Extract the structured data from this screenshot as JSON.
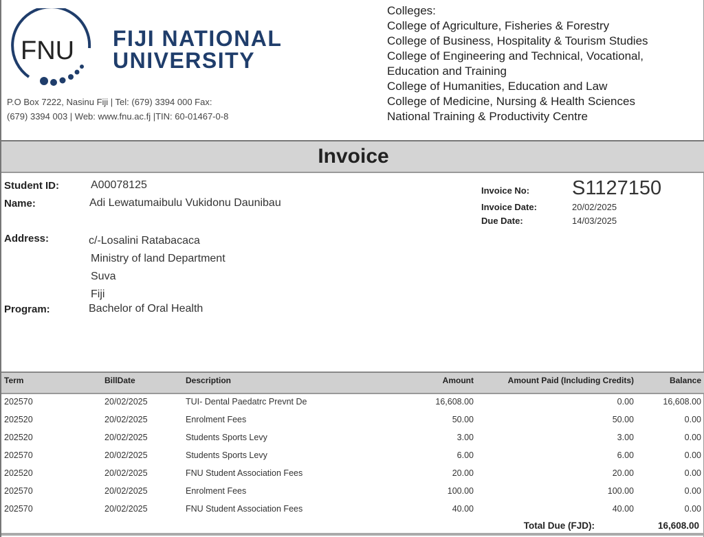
{
  "header": {
    "logo_text": "FNU",
    "university_line1": "FIJI NATIONAL",
    "university_line2": "UNIVERSITY",
    "address_line1": "P.O Box 7222, Nasinu Fiji | Tel: (679) 3394 000 Fax:",
    "address_line2": "(679) 3394 003 | Web: www.fnu.ac.fj |TIN: 60-01467-0-8",
    "colleges_label": "Colleges:",
    "colleges": [
      "College of Agriculture, Fisheries & Forestry",
      "College of Business, Hospitality & Tourism Studies",
      "College of Engineering and Technical, Vocational,",
      "Education and Training",
      "College of Humanities, Education and Law",
      "College of Medicine, Nursing & Health Sciences",
      "National Training & Productivity Centre"
    ]
  },
  "title": "Invoice",
  "student": {
    "id_label": "Student ID:",
    "id": "A00078125",
    "name_label": "Name:",
    "name": "Adi Lewatumaibulu Vukidonu Daunibau",
    "address_label": "Address:",
    "address": [
      "c/-Losalini Ratabacaca",
      "Ministry of land Department",
      "Suva",
      "Fiji"
    ],
    "program_label": "Program:",
    "program": "Bachelor of Oral Health"
  },
  "invoice": {
    "no_label": "Invoice No:",
    "no": "S1127150",
    "date_label": "Invoice Date:",
    "date": "20/02/2025",
    "due_label": "Due Date:",
    "due": "14/03/2025"
  },
  "table": {
    "headers": [
      "Term",
      "BillDate",
      "Description",
      "Amount",
      "Amount Paid (Including Credits)",
      "Balance"
    ],
    "rows": [
      [
        "202570",
        "20/02/2025",
        "TUI- Dental Paedatrc Prevnt De",
        "16,608.00",
        "0.00",
        "16,608.00"
      ],
      [
        "202520",
        "20/02/2025",
        "Enrolment Fees",
        "50.00",
        "50.00",
        "0.00"
      ],
      [
        "202520",
        "20/02/2025",
        "Students Sports Levy",
        "3.00",
        "3.00",
        "0.00"
      ],
      [
        "202570",
        "20/02/2025",
        "Students Sports Levy",
        "6.00",
        "6.00",
        "0.00"
      ],
      [
        "202520",
        "20/02/2025",
        "FNU Student Association Fees",
        "20.00",
        "20.00",
        "0.00"
      ],
      [
        "202570",
        "20/02/2025",
        "Enrolment Fees",
        "100.00",
        "100.00",
        "0.00"
      ],
      [
        "202570",
        "20/02/2025",
        "FNU Student Association Fees",
        "40.00",
        "40.00",
        "0.00"
      ]
    ],
    "total_label": "Total Due (FJD):",
    "total": "16,608.00"
  },
  "colors": {
    "brand": "#1f3d6b",
    "header_gray": "#d4d4d4"
  }
}
